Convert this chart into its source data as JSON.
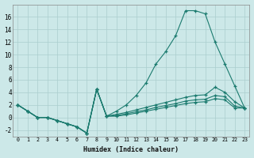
{
  "bg_color": "#cce8e8",
  "line_color": "#1a7a6e",
  "grid_color": "#aacece",
  "xlabel": "Humidex (Indice chaleur)",
  "xlim": [
    -0.5,
    23.5
  ],
  "ylim": [
    -3,
    18
  ],
  "xticks": [
    0,
    1,
    2,
    3,
    4,
    5,
    6,
    7,
    8,
    9,
    10,
    11,
    12,
    13,
    14,
    15,
    16,
    17,
    18,
    19,
    20,
    21,
    22,
    23
  ],
  "yticks": [
    -2,
    0,
    2,
    4,
    6,
    8,
    10,
    12,
    14,
    16
  ],
  "main_x": [
    0,
    1,
    2,
    3,
    4,
    5,
    6,
    7,
    8,
    9,
    10,
    11,
    12,
    13,
    14,
    15,
    16,
    17,
    18,
    19,
    20,
    21,
    22,
    23
  ],
  "main_y": [
    2,
    1,
    0,
    0,
    -0.5,
    -1,
    -1.5,
    -2.5,
    4.5,
    0.2,
    1,
    2,
    3.5,
    5.5,
    8.5,
    10.5,
    13,
    17,
    17,
    16.5,
    12,
    8.5,
    5,
    1.5
  ],
  "flat1_x": [
    0,
    1,
    2,
    3,
    4,
    5,
    6,
    7,
    8,
    9,
    10,
    11,
    12,
    13,
    14,
    15,
    16,
    17,
    18,
    19,
    20,
    21,
    22,
    23
  ],
  "flat1_y": [
    2,
    1,
    0,
    0,
    -0.5,
    -1,
    -1.5,
    -2.5,
    4.5,
    0.2,
    0.5,
    0.8,
    1.2,
    1.6,
    2.0,
    2.4,
    2.8,
    3.2,
    3.5,
    3.6,
    4.8,
    4.0,
    2.5,
    1.5
  ],
  "flat2_x": [
    0,
    1,
    2,
    3,
    4,
    5,
    6,
    7,
    8,
    9,
    10,
    11,
    12,
    13,
    14,
    15,
    16,
    17,
    18,
    19,
    20,
    21,
    22,
    23
  ],
  "flat2_y": [
    2,
    1,
    0,
    0,
    -0.5,
    -1,
    -1.5,
    -2.5,
    4.5,
    0.2,
    0.3,
    0.6,
    0.9,
    1.2,
    1.6,
    1.9,
    2.2,
    2.6,
    2.8,
    2.9,
    3.5,
    3.3,
    1.8,
    1.5
  ],
  "flat3_x": [
    0,
    1,
    2,
    3,
    4,
    5,
    6,
    7,
    8,
    9,
    10,
    11,
    12,
    13,
    14,
    15,
    16,
    17,
    18,
    19,
    20,
    21,
    22,
    23
  ],
  "flat3_y": [
    2,
    1,
    0,
    0,
    -0.5,
    -1,
    -1.5,
    -2.5,
    4.5,
    0.2,
    0.2,
    0.4,
    0.7,
    1.0,
    1.3,
    1.6,
    1.9,
    2.2,
    2.4,
    2.5,
    3.0,
    2.8,
    1.5,
    1.5
  ]
}
